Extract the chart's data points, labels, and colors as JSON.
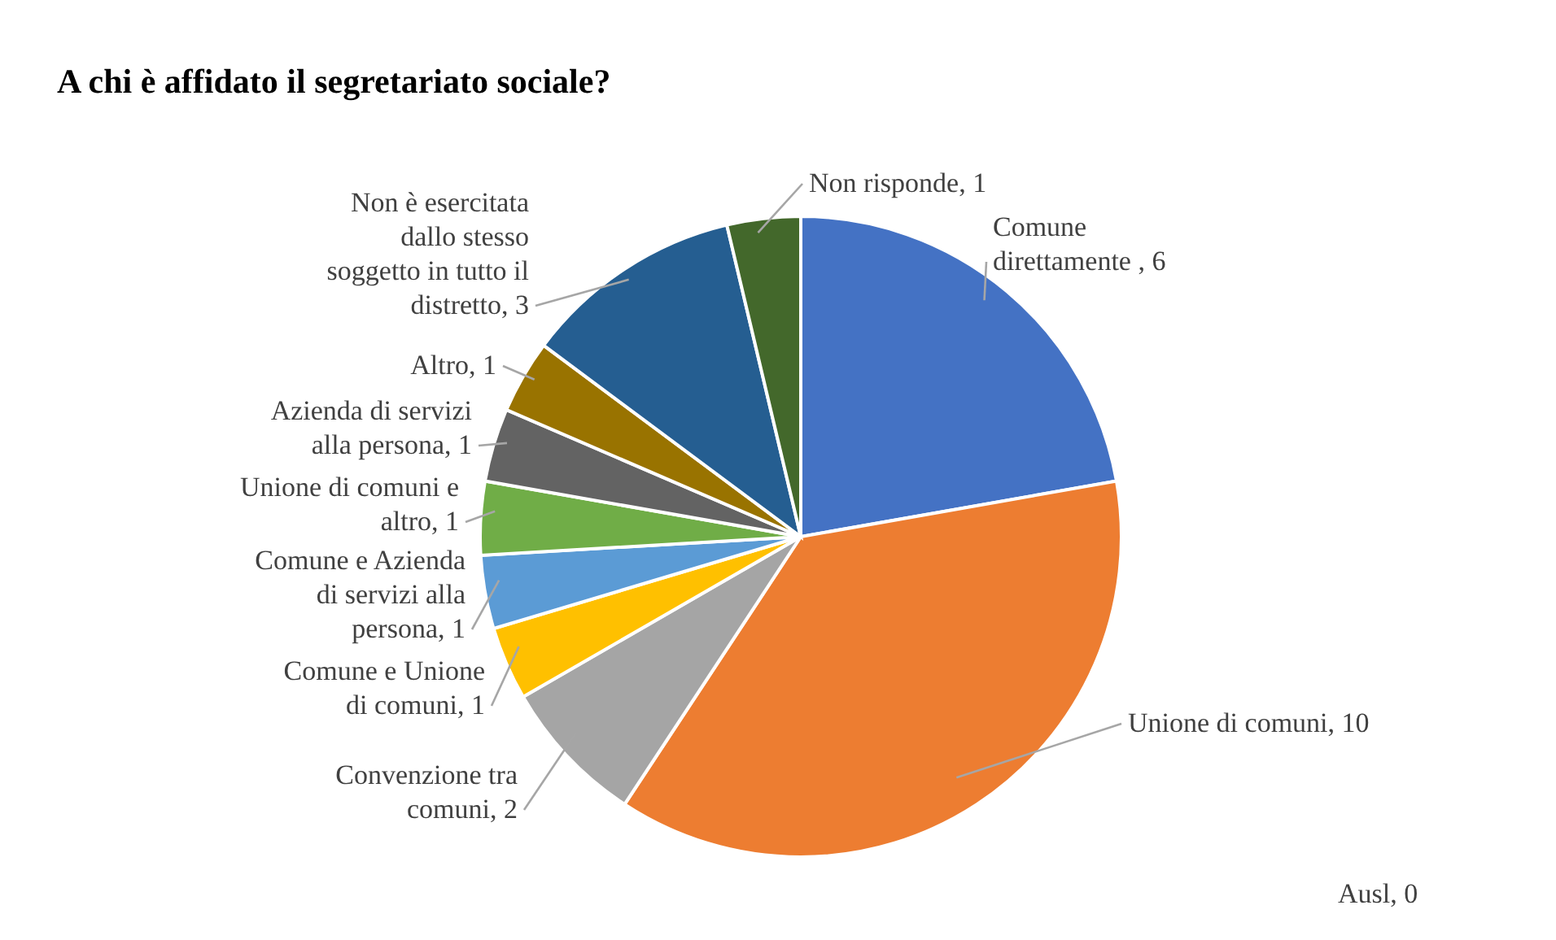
{
  "chart_data": {
    "type": "pie",
    "title": "A chi è affidato il segretariato sociale?",
    "categories": [
      "Comune direttamente ",
      "Unione di comuni",
      "Ausl",
      "Convenzione tra comuni",
      "Comune e Unione di comuni",
      "Comune e Azienda di servizi alla persona",
      "Unione di comuni e altro",
      "Azienda di servizi alla persona",
      "Altro",
      "Non è esercitata dallo stesso soggetto in tutto il distretto",
      "Non risponde"
    ],
    "values": [
      6,
      10,
      0,
      2,
      1,
      1,
      1,
      1,
      1,
      3,
      1
    ],
    "colors": [
      "#4472c4",
      "#ed7d31",
      "#264478",
      "#a5a5a5",
      "#ffc000",
      "#5b9bd5",
      "#70ad47",
      "#636363",
      "#997300",
      "#255e91",
      "#43682b"
    ],
    "value_labels": [
      ", 6",
      ", 10",
      ", 0",
      ", 2",
      ", 1",
      ", 1",
      ", 1",
      ", 1",
      ", 1",
      ", 3",
      ", 1"
    ]
  }
}
